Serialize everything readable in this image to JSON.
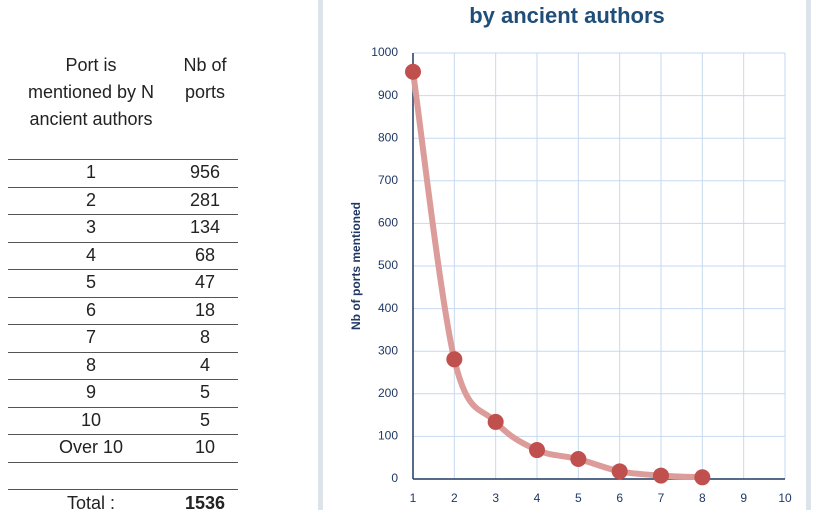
{
  "table": {
    "header": [
      "Port is mentioned by N ancient authors",
      "Nb of ports"
    ],
    "rows": [
      [
        1,
        956
      ],
      [
        2,
        281
      ],
      [
        3,
        134
      ],
      [
        4,
        68
      ],
      [
        5,
        47
      ],
      [
        6,
        18
      ],
      [
        7,
        8
      ],
      [
        8,
        4
      ],
      [
        9,
        5
      ],
      [
        10,
        5
      ],
      [
        "Over 10",
        10
      ]
    ],
    "total": [
      "Total :",
      1536
    ]
  },
  "chart_data": {
    "type": "scatter",
    "title": "by ancient authors",
    "y_label": "Nb of ports mentioned",
    "x": [
      1,
      2,
      3,
      4,
      5,
      6,
      7,
      8
    ],
    "values": [
      956,
      281,
      134,
      68,
      47,
      18,
      8,
      4
    ],
    "color": "#c0504d",
    "smooth_line": true,
    "line_color": "#dc9c9a",
    "xlim": [
      1,
      10
    ],
    "xticks": [
      1,
      2,
      3,
      4,
      5,
      6,
      7,
      8,
      9,
      10
    ],
    "ylim": [
      0,
      1000
    ],
    "yticks": [
      0,
      100,
      200,
      300,
      400,
      500,
      600,
      700,
      800,
      900,
      1000
    ],
    "grid": true
  }
}
